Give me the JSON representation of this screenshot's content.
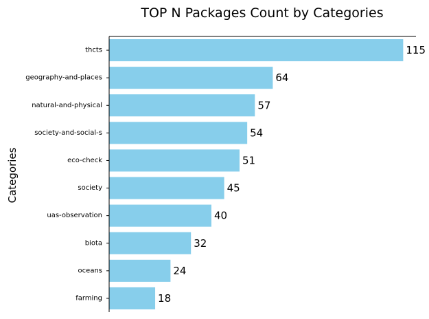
{
  "chart_data": {
    "type": "bar",
    "orientation": "horizontal",
    "title": "TOP N Packages Count by Categories",
    "xlabel": "",
    "ylabel": "Categories",
    "categories": [
      "thcts",
      "geography-and-places",
      "natural-and-physical",
      "society-and-social-s",
      "eco-check",
      "society",
      "uas-observation",
      "biota",
      "oceans",
      "farming"
    ],
    "values": [
      115,
      64,
      57,
      54,
      51,
      45,
      40,
      32,
      24,
      18
    ],
    "value_labels": [
      "115",
      "64",
      "57",
      "54",
      "51",
      "45",
      "40",
      "32",
      "24",
      "18"
    ],
    "xlim": [
      0,
      120
    ],
    "bar_color": "#87ceeb",
    "grid": false,
    "legend": "none",
    "x_ticks_visible": false
  }
}
